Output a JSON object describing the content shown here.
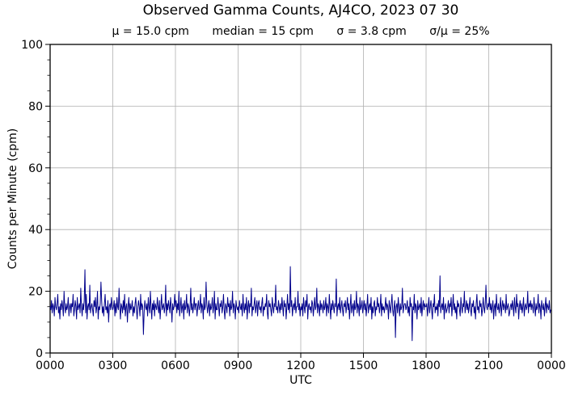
{
  "figure": {
    "title": "Observed Gamma Counts, AJ4CO, 2023 07 30",
    "stats": {
      "mu": "μ = 15.0 cpm",
      "median": "median = 15 cpm",
      "sigma": "σ = 3.8 cpm",
      "ratio": "σ/μ = 25%"
    }
  },
  "chart_data": {
    "type": "line",
    "title": "Observed Gamma Counts, AJ4CO, 2023 07 30",
    "stats": {
      "mean_cpm": 15.0,
      "median_cpm": 15,
      "sigma_cpm": 3.8,
      "sigma_over_mean_pct": 25
    },
    "xlabel": "UTC",
    "ylabel": "Counts per Minute (cpm)",
    "xlim_minutes": [
      0,
      1440
    ],
    "ylim": [
      0,
      100
    ],
    "x_tick_minutes": [
      0,
      180,
      360,
      540,
      720,
      900,
      1080,
      1260,
      1440
    ],
    "x_tick_labels": [
      "0000",
      "0300",
      "0600",
      "0900",
      "1200",
      "1500",
      "1800",
      "2100",
      "0000"
    ],
    "y_ticks": [
      0,
      20,
      40,
      60,
      80,
      100
    ],
    "y_minor_tick_step": 5,
    "grid": true,
    "legend": "none",
    "line_color": "#00008b",
    "grid_color": "#b0b0b0",
    "sample_step_minutes": 2,
    "values_cpm": [
      15,
      14,
      17,
      13,
      16,
      15,
      12,
      18,
      15,
      14,
      16,
      19,
      13,
      15,
      11,
      16,
      14,
      17,
      15,
      12,
      20,
      15,
      13,
      16,
      14,
      15,
      18,
      12,
      15,
      16,
      13,
      16,
      15,
      19,
      12,
      14,
      17,
      15,
      11,
      18,
      14,
      15,
      16,
      13,
      21,
      15,
      12,
      16,
      14,
      17,
      27,
      13,
      19,
      11,
      15,
      16,
      14,
      22,
      13,
      15,
      16,
      14,
      12,
      17,
      15,
      18,
      13,
      15,
      20,
      11,
      15,
      14,
      16,
      23,
      17,
      13,
      15,
      12,
      16,
      19,
      14,
      15,
      13,
      17,
      10,
      15,
      16,
      14,
      18,
      15,
      14,
      15,
      17,
      12,
      16,
      13,
      18,
      15,
      14,
      21,
      15,
      11,
      16,
      15,
      13,
      17,
      14,
      19,
      12,
      15,
      16,
      10,
      15,
      18,
      13,
      16,
      14,
      15,
      17,
      12,
      15,
      13,
      16,
      18,
      14,
      11,
      15,
      17,
      15,
      12,
      19,
      14,
      16,
      15,
      6,
      13,
      17,
      15,
      14,
      16,
      12,
      18,
      15,
      13,
      20,
      15,
      11,
      16,
      14,
      17,
      12,
      16,
      15,
      14,
      18,
      15,
      13,
      17,
      11,
      15,
      19,
      14,
      15,
      16,
      13,
      15,
      22,
      12,
      16,
      14,
      17,
      15,
      13,
      18,
      15,
      10,
      16,
      14,
      15,
      19,
      15,
      17,
      13,
      16,
      14,
      20,
      12,
      15,
      18,
      13,
      15,
      16,
      11,
      17,
      14,
      15,
      19,
      13,
      16,
      15,
      12,
      15,
      21,
      14,
      16,
      13,
      15,
      18,
      14,
      16,
      16,
      12,
      15,
      17,
      14,
      15,
      19,
      13,
      16,
      15,
      11,
      18,
      14,
      15,
      23,
      16,
      13,
      15,
      17,
      12,
      16,
      14,
      15,
      18,
      13,
      15,
      20,
      11,
      16,
      14,
      14,
      18,
      15,
      12,
      16,
      15,
      17,
      13,
      15,
      19,
      14,
      11,
      16,
      15,
      13,
      18,
      15,
      16,
      12,
      17,
      14,
      15,
      20,
      13,
      16,
      15,
      11,
      17,
      15,
      14,
      15,
      13,
      17,
      15,
      14,
      16,
      12,
      19,
      15,
      13,
      16,
      14,
      18,
      11,
      15,
      17,
      13,
      16,
      15,
      21,
      12,
      15,
      14,
      16,
      18,
      13,
      15,
      17,
      12,
      16,
      17,
      14,
      15,
      13,
      16,
      18,
      12,
      15,
      14,
      16,
      15,
      19,
      13,
      11,
      17,
      15,
      16,
      14,
      12,
      18,
      15,
      13,
      16,
      15,
      22,
      14,
      15,
      13,
      17,
      15,
      13,
      16,
      14,
      18,
      15,
      12,
      17,
      15,
      16,
      11,
      15,
      19,
      14,
      16,
      13,
      28,
      15,
      17,
      12,
      15,
      16,
      14,
      18,
      13,
      15,
      15,
      20,
      14,
      16,
      12,
      15,
      14,
      16,
      12,
      18,
      15,
      13,
      17,
      15,
      19,
      11,
      15,
      16,
      14,
      15,
      13,
      17,
      16,
      12,
      15,
      18,
      14,
      15,
      21,
      13,
      16,
      15,
      12,
      17,
      14,
      16,
      15,
      13,
      17,
      14,
      15,
      18,
      12,
      16,
      15,
      13,
      19,
      15,
      11,
      16,
      14,
      17,
      15,
      13,
      16,
      15,
      24,
      12,
      15,
      16,
      14,
      18,
      13,
      15,
      17,
      14,
      12,
      16,
      15,
      17,
      13,
      15,
      18,
      14,
      16,
      11,
      15,
      19,
      13,
      15,
      16,
      12,
      17,
      14,
      15,
      20,
      13,
      16,
      15,
      12,
      18,
      14,
      15,
      17,
      13,
      15,
      17,
      14,
      16,
      12,
      15,
      19,
      13,
      15,
      16,
      14,
      18,
      11,
      15,
      13,
      16,
      17,
      12,
      15,
      14,
      18,
      15,
      16,
      13,
      15,
      19,
      12,
      16,
      14,
      15,
      13,
      15,
      18,
      14,
      16,
      15,
      11,
      17,
      15,
      13,
      16,
      19,
      14,
      12,
      15,
      17,
      5,
      15,
      16,
      13,
      18,
      15,
      12,
      16,
      14,
      15,
      21,
      13,
      15,
      16,
      16,
      14,
      15,
      17,
      13,
      15,
      12,
      18,
      15,
      16,
      4,
      15,
      14,
      19,
      13,
      16,
      15,
      11,
      17,
      14,
      15,
      16,
      13,
      18,
      12,
      15,
      17,
      14,
      16,
      15,
      15,
      16,
      12,
      15,
      18,
      13,
      15,
      17,
      14,
      11,
      16,
      15,
      19,
      13,
      15,
      14,
      16,
      12,
      17,
      15,
      25,
      13,
      15,
      16,
      14,
      18,
      11,
      15,
      16,
      13,
      14,
      15,
      17,
      13,
      16,
      15,
      18,
      12,
      15,
      19,
      14,
      16,
      13,
      15,
      11,
      17,
      15,
      16,
      14,
      12,
      18,
      15,
      13,
      16,
      15,
      20,
      13,
      15,
      17,
      14,
      16,
      13,
      15,
      18,
      14,
      12,
      16,
      15,
      17,
      13,
      15,
      11,
      16,
      19,
      14,
      15,
      13,
      17,
      15,
      16,
      12,
      14,
      18,
      15,
      13,
      16,
      22,
      15,
      14,
      16,
      15,
      18,
      14,
      16,
      13,
      15,
      17,
      11,
      15,
      16,
      12,
      19,
      15,
      14,
      16,
      13,
      15,
      18,
      12,
      15,
      17,
      14,
      16,
      15,
      13,
      19,
      14,
      15,
      16,
      12,
      13,
      15,
      16,
      14,
      17,
      15,
      12,
      18,
      15,
      13,
      19,
      15,
      16,
      11,
      15,
      17,
      14,
      16,
      13,
      15,
      18,
      12,
      15,
      16,
      14,
      15,
      20,
      13,
      16,
      15,
      17,
      14,
      16,
      15,
      13,
      18,
      15,
      12,
      16,
      14,
      15,
      19,
      13,
      16,
      15,
      11,
      17,
      15,
      14,
      16,
      12,
      15,
      18,
      13,
      16,
      15,
      14,
      17,
      13,
      14
    ]
  }
}
